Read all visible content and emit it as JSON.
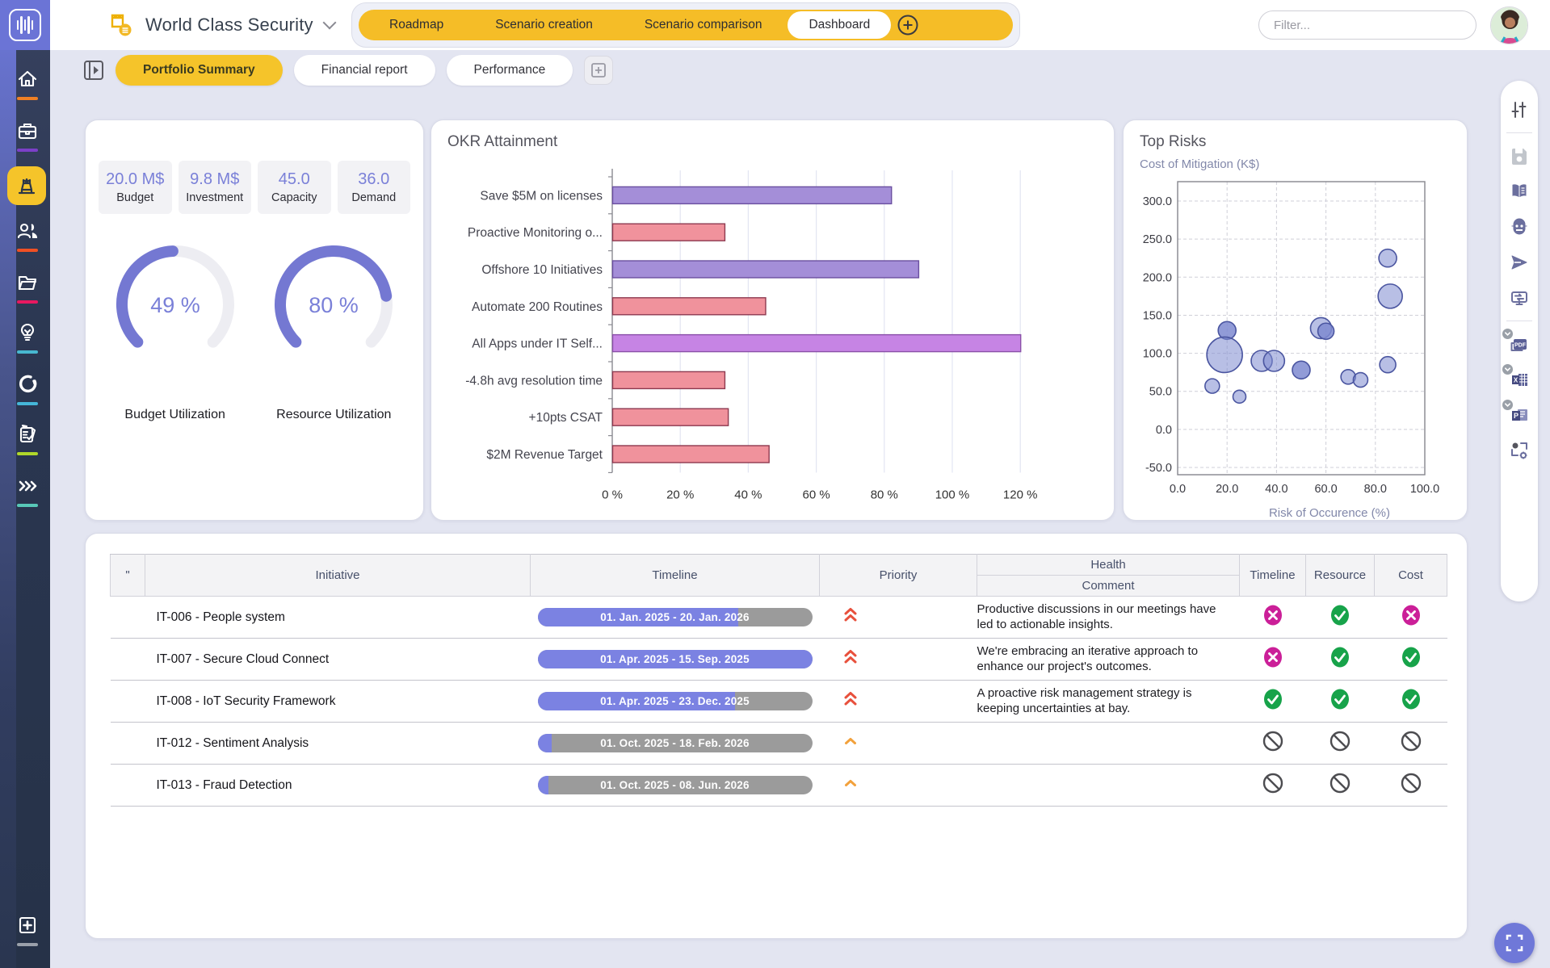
{
  "app": {
    "portfolio_name": "World Class Security"
  },
  "topbar": {
    "tabs": [
      {
        "label": "Roadmap",
        "active": false
      },
      {
        "label": "Scenario creation",
        "active": false
      },
      {
        "label": "Scenario comparison",
        "active": false
      },
      {
        "label": "Dashboard",
        "active": true
      }
    ],
    "add_scenario_icon": "plus-circle-icon",
    "filter": {
      "placeholder": "Filter..."
    },
    "avatar_icon": "user-avatar"
  },
  "sidebar": {
    "items": [
      {
        "icon": "home-icon",
        "accent": "#f08024",
        "active": false
      },
      {
        "icon": "briefcase-icon",
        "accent": "#7c40c8",
        "active": false
      },
      {
        "icon": "portfolio-icon",
        "accent": "",
        "active": true
      },
      {
        "icon": "users-icon",
        "accent": "#f05024",
        "active": false
      },
      {
        "icon": "folder-icon",
        "accent": "#e81860",
        "active": false
      },
      {
        "icon": "lightbulb-icon",
        "accent": "#48b8d0",
        "active": false
      },
      {
        "icon": "progress-ring-icon",
        "accent": "#45b6d8",
        "active": false
      },
      {
        "icon": "tasks-icon",
        "accent": "#b0d82a",
        "active": false
      },
      {
        "icon": "chevrons-icon",
        "accent": "#58c8b8",
        "active": false
      }
    ],
    "bottom_item": {
      "icon": "add-board-icon",
      "accent": "#9aa0aa"
    }
  },
  "subtabs": {
    "toggle_icon": "panel-expand-icon",
    "items": [
      {
        "label": "Portfolio Summary",
        "active": true
      },
      {
        "label": "Financial report",
        "active": false
      },
      {
        "label": "Performance",
        "active": false
      }
    ],
    "add_icon": "plus-square-icon"
  },
  "kpi_card": {
    "stats": [
      {
        "value": "20.0 M$",
        "label": "Budget"
      },
      {
        "value": "9.8 M$",
        "label": "Investment"
      },
      {
        "value": "45.0",
        "label": "Capacity"
      },
      {
        "value": "36.0",
        "label": "Demand"
      }
    ],
    "gauges": [
      {
        "value": 49,
        "display": "49 %",
        "label": "Budget Utilization"
      },
      {
        "value": 80,
        "display": "80 %",
        "label": "Resource Utilization"
      }
    ],
    "gauge_color": "#7478d2",
    "gauge_track": "#ededf2"
  },
  "chart_data": [
    {
      "type": "bar",
      "orientation": "horizontal",
      "title": "OKR Attainment",
      "categories": [
        "Save $5M on licenses",
        "Proactive Monitoring o...",
        "Offshore 10 Initiatives",
        "Automate 200 Routines",
        "All Apps under IT Self...",
        "-4.8h avg resolution time",
        "+10pts CSAT",
        "$2M Revenue Target"
      ],
      "values": [
        82,
        33,
        90,
        45,
        120,
        33,
        34,
        46
      ],
      "bar_palette": [
        "purple",
        "red",
        "purple",
        "red",
        "violet",
        "red",
        "red",
        "red"
      ],
      "colors": {
        "purple": {
          "fill": "#a48ed8",
          "stroke": "#6b4fa0"
        },
        "violet": {
          "fill": "#c684e4",
          "stroke": "#8a50a8"
        },
        "red": {
          "fill": "#f0929c",
          "stroke": "#8e3a50"
        }
      },
      "xlabel": "",
      "ylabel": "",
      "xlim": [
        0,
        130
      ],
      "x_ticks": [
        0,
        20,
        40,
        60,
        80,
        100,
        120
      ],
      "x_tick_labels": [
        "0 %",
        "20 %",
        "40 %",
        "60 %",
        "80 %",
        "100 %",
        "120 %"
      ],
      "grid": true
    },
    {
      "type": "scatter",
      "title": "Top Risks",
      "ylabel": "Cost of Mitigation (K$)",
      "xlabel": "Risk of Occurence (%)",
      "xlim": [
        0,
        100
      ],
      "ylim": [
        -50,
        300
      ],
      "x_ticks": [
        0,
        20,
        40,
        60,
        80,
        100
      ],
      "x_tick_labels": [
        "0.0",
        "20.0",
        "40.0",
        "60.0",
        "80.0",
        "100.0"
      ],
      "y_ticks": [
        300,
        250,
        200,
        150,
        100,
        50,
        0,
        -50
      ],
      "y_tick_labels": [
        "300.0",
        "250.0",
        "200.0",
        "150.0",
        "100.0",
        "50.0",
        "0.0",
        "-50.0"
      ],
      "grid": "dashed",
      "bubble_fill": "#7e8ad0",
      "bubble_stroke": "#4a55a0",
      "points": [
        {
          "x": 20,
          "y": 130,
          "r": 11,
          "shade": "dark"
        },
        {
          "x": 19,
          "y": 98,
          "r": 22,
          "shade": "normal"
        },
        {
          "x": 14,
          "y": 57,
          "r": 9,
          "shade": "normal"
        },
        {
          "x": 25,
          "y": 43,
          "r": 8,
          "shade": "normal"
        },
        {
          "x": 34,
          "y": 90,
          "r": 13,
          "shade": "normal"
        },
        {
          "x": 39,
          "y": 90,
          "r": 13,
          "shade": "normal"
        },
        {
          "x": 50,
          "y": 78,
          "r": 11,
          "shade": "dark"
        },
        {
          "x": 58,
          "y": 133,
          "r": 13,
          "shade": "normal"
        },
        {
          "x": 60,
          "y": 129,
          "r": 10,
          "shade": "dark"
        },
        {
          "x": 69,
          "y": 69,
          "r": 9,
          "shade": "normal"
        },
        {
          "x": 74,
          "y": 65,
          "r": 9,
          "shade": "normal"
        },
        {
          "x": 85,
          "y": 225,
          "r": 11,
          "shade": "normal"
        },
        {
          "x": 86,
          "y": 175,
          "r": 15,
          "shade": "normal"
        },
        {
          "x": 85,
          "y": 85,
          "r": 10,
          "shade": "normal"
        }
      ]
    }
  ],
  "table": {
    "headers": {
      "first": "\"",
      "initiative": "Initiative",
      "timeline": "Timeline",
      "priority": "Priority",
      "health_group": "Health",
      "comment": "Comment",
      "status_timeline": "Timeline",
      "status_resource": "Resource",
      "status_cost": "Cost"
    },
    "status_colors": {
      "good": "#17a34a",
      "bad": "#cb1f98",
      "none": "#4c4c50"
    },
    "priority_colors": {
      "highest": "#e8503c",
      "high": "#f2a13c"
    },
    "rows": [
      {
        "initiative": "IT-006 - People system",
        "timeline_label": "01. Jan. 2025  -  20. Jan. 2026",
        "timeline_progress": 73,
        "priority": "highest",
        "comment": "Productive discussions in our meetings have led to actionable insights.",
        "timeline_status": "bad",
        "resource_status": "good",
        "cost_status": "bad"
      },
      {
        "initiative": "IT-007 - Secure Cloud Connect",
        "timeline_label": "01. Apr. 2025  -  15. Sep. 2025",
        "timeline_progress": 100,
        "priority": "highest",
        "comment": "We're embracing an iterative approach to enhance our project's outcomes.",
        "timeline_status": "bad",
        "resource_status": "good",
        "cost_status": "good"
      },
      {
        "initiative": "IT-008 - IoT Security Framework",
        "timeline_label": "01. Apr. 2025  -  23. Dec. 2025",
        "timeline_progress": 72,
        "priority": "highest",
        "comment": "A proactive risk management strategy is keeping uncertainties at bay.",
        "timeline_status": "good",
        "resource_status": "good",
        "cost_status": "good"
      },
      {
        "initiative": "IT-012 - Sentiment Analysis",
        "timeline_label": "01. Oct. 2025  -  18. Feb. 2026",
        "timeline_progress": 5,
        "priority": "high",
        "comment": "",
        "timeline_status": "none",
        "resource_status": "none",
        "cost_status": "none"
      },
      {
        "initiative": "IT-013 - Fraud Detection",
        "timeline_label": "01. Oct. 2025  -  08. Jun. 2026",
        "timeline_progress": 4,
        "priority": "high",
        "comment": "",
        "timeline_status": "none",
        "resource_status": "none",
        "cost_status": "none"
      }
    ]
  },
  "right_toolbar": {
    "items": [
      {
        "icon": "sliders-icon",
        "divider_after": true,
        "disabled": false
      },
      {
        "icon": "save-icon",
        "disabled": true
      },
      {
        "icon": "book-icon"
      },
      {
        "icon": "robot-icon"
      },
      {
        "icon": "send-icon"
      },
      {
        "icon": "presentation-icon",
        "divider_after": true
      },
      {
        "icon": "export-pdf-icon",
        "badge": true
      },
      {
        "icon": "export-excel-icon",
        "badge": true
      },
      {
        "icon": "export-ppt-icon",
        "badge": true
      },
      {
        "icon": "screenshot-settings-icon"
      }
    ]
  },
  "floating": {
    "fullscreen_icon": "fullscreen-icon"
  },
  "colors": {
    "brand_yellow": "#f5bd27",
    "brand_purple": "#6b74d6",
    "sidebar_navy": "#263248",
    "page_bg": "#e3e5f1"
  }
}
